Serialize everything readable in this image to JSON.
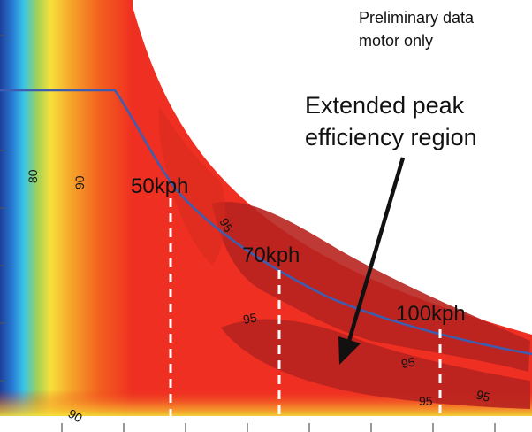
{
  "chart_data": {
    "type": "heatmap",
    "title": "",
    "xlabel": "",
    "ylabel": "",
    "grid": false,
    "notes": [
      "Preliminary data",
      "motor only"
    ],
    "contour_labels": [
      "80",
      "90",
      "90",
      "95",
      "95",
      "95",
      "95",
      "95"
    ],
    "speed_markers": [
      "50kph",
      "70kph",
      "100kph"
    ],
    "annotation": {
      "lines": [
        "Extended peak",
        "efficiency region"
      ]
    },
    "colors": {
      "dark_blue": "#1d3f9a",
      "blue": "#2a7fd6",
      "cyan": "#39c6e6",
      "green": "#9fd15a",
      "yellow": "#f6e13a",
      "orange": "#f6a02a",
      "red": "#ef2f22",
      "peak_red": "#b8231f",
      "torque_curve": "#3d5db0"
    }
  }
}
